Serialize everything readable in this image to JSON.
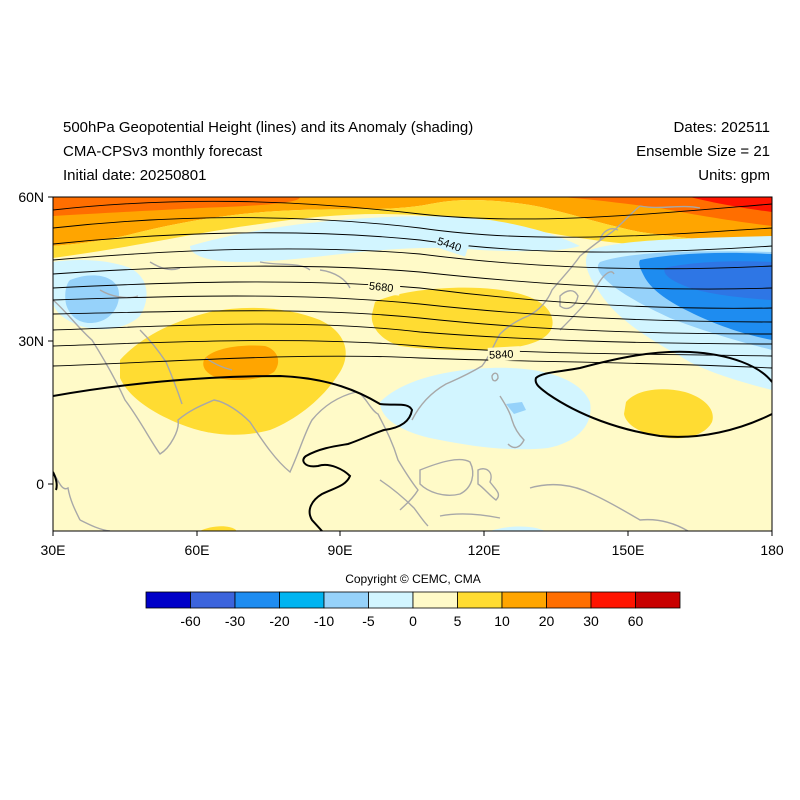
{
  "header": {
    "title_line1": "500hPa Geopotential Height (lines) and its Anomaly (shading)",
    "title_line2": "CMA-CPSv3 monthly forecast",
    "title_line3": "Initial date: 20250801",
    "dates": "Dates: 202511",
    "ensemble": "Ensemble Size = 21",
    "units": "Units: gpm"
  },
  "axes": {
    "lat_labels": [
      "60N",
      "30N",
      "0"
    ],
    "lon_labels": [
      "30E",
      "60E",
      "90E",
      "120E",
      "150E",
      "180"
    ]
  },
  "contour_labels": [
    "5440",
    "5680",
    "5840"
  ],
  "colorbar": {
    "colors": [
      "#0000c8",
      "#3c64dc",
      "#1e8cf0",
      "#00b4f0",
      "#96d2fa",
      "#d2f5ff",
      "#fffac8",
      "#ffdc32",
      "#ffa500",
      "#ff6e00",
      "#ff1400",
      "#c80000"
    ],
    "labels": [
      "-60",
      "-30",
      "-20",
      "-10",
      "-5",
      "0",
      "5",
      "10",
      "20",
      "30",
      "60"
    ]
  },
  "copyright": "Copyright © CEMC, CMA"
}
